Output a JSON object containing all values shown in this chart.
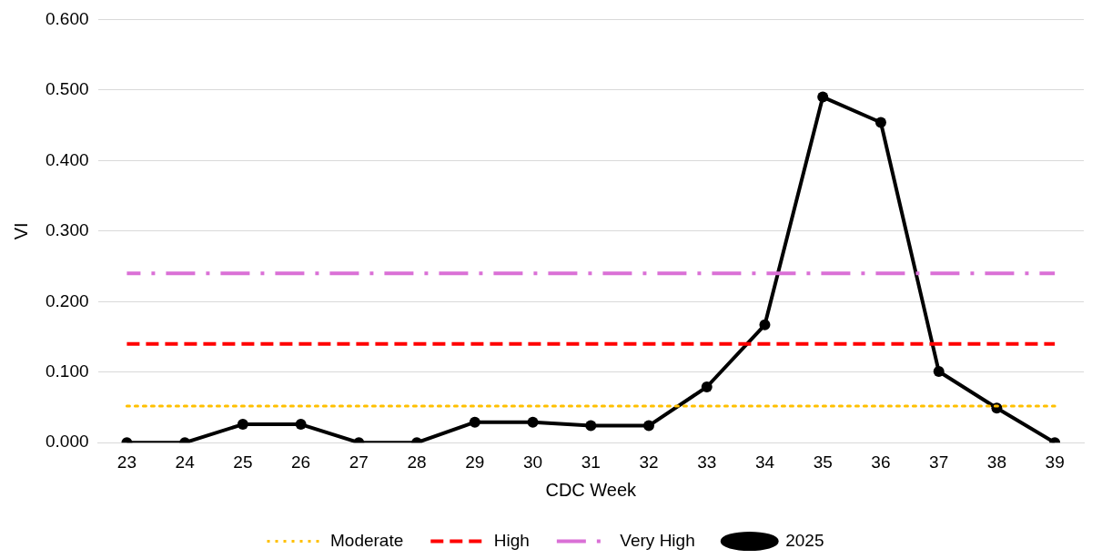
{
  "chart_data": {
    "type": "line",
    "xlabel": "CDC Week",
    "ylabel": "VI",
    "categories": [
      "23",
      "24",
      "25",
      "26",
      "27",
      "28",
      "29",
      "30",
      "31",
      "32",
      "33",
      "34",
      "35",
      "36",
      "37",
      "38",
      "39"
    ],
    "series": [
      {
        "name": "Moderate",
        "color": "#ffc000",
        "line_style": "dotted",
        "marker": "none",
        "values": [
          0.052,
          0.052,
          0.052,
          0.052,
          0.052,
          0.052,
          0.052,
          0.052,
          0.052,
          0.052,
          0.052,
          0.052,
          0.052,
          0.052,
          0.052,
          0.052,
          0.052
        ]
      },
      {
        "name": "High",
        "color": "#ff0000",
        "line_style": "dashed",
        "marker": "none",
        "values": [
          0.14,
          0.14,
          0.14,
          0.14,
          0.14,
          0.14,
          0.14,
          0.14,
          0.14,
          0.14,
          0.14,
          0.14,
          0.14,
          0.14,
          0.14,
          0.14,
          0.14
        ]
      },
      {
        "name": "Very High",
        "color": "#da70d6",
        "line_style": "dashdot",
        "marker": "none",
        "values": [
          0.24,
          0.24,
          0.24,
          0.24,
          0.24,
          0.24,
          0.24,
          0.24,
          0.24,
          0.24,
          0.24,
          0.24,
          0.24,
          0.24,
          0.24,
          0.24,
          0.24
        ]
      },
      {
        "name": "2025",
        "color": "#000000",
        "line_style": "solid",
        "marker": "circle",
        "values": [
          0,
          0,
          0.026,
          0.026,
          0,
          0,
          0.029,
          0.029,
          0.024,
          0.024,
          0.079,
          0.167,
          0.49,
          0.454,
          0.101,
          0.049,
          0
        ]
      }
    ],
    "ylim": [
      0,
      0.6
    ],
    "yticks": [
      {
        "value": 0,
        "label": "0.000"
      },
      {
        "value": 0.1,
        "label": "0.100"
      },
      {
        "value": 0.2,
        "label": "0.200"
      },
      {
        "value": 0.3,
        "label": "0.300"
      },
      {
        "value": 0.4,
        "label": "0.400"
      },
      {
        "value": 0.5,
        "label": "0.500"
      },
      {
        "value": 0.6,
        "label": "0.600"
      }
    ],
    "grid": "y",
    "legend": "bottom"
  }
}
